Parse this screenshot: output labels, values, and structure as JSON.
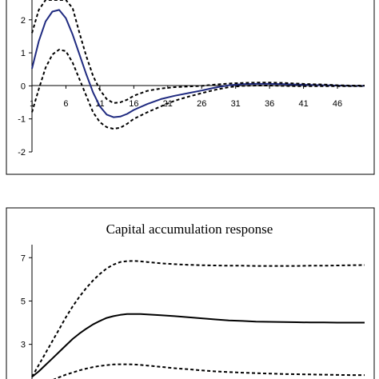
{
  "chart_data": [
    {
      "type": "line",
      "title": "",
      "xlabel": "",
      "ylabel": "",
      "x_ticks": [
        "1",
        "6",
        "11",
        "16",
        "21",
        "26",
        "31",
        "36",
        "41",
        "46"
      ],
      "y_ticks": [
        "2",
        "1",
        "0",
        "-1",
        "-2"
      ],
      "ylim": [
        -2.0,
        2.6
      ],
      "xlim": [
        1,
        50
      ],
      "grid": false,
      "legend": "none",
      "series": [
        {
          "style": "solid",
          "color": "#1f2a80",
          "x": [
            1,
            2,
            3,
            4,
            5,
            6,
            7,
            8,
            9,
            10,
            11,
            12,
            13,
            14,
            15,
            16,
            18,
            20,
            22,
            24,
            26,
            28,
            30,
            32,
            34,
            36,
            38,
            40,
            42,
            44,
            46,
            48,
            50
          ],
          "values": [
            0.52,
            1.35,
            1.95,
            2.25,
            2.3,
            2.05,
            1.55,
            0.95,
            0.35,
            -0.2,
            -0.62,
            -0.87,
            -0.95,
            -0.93,
            -0.85,
            -0.73,
            -0.55,
            -0.4,
            -0.3,
            -0.22,
            -0.14,
            -0.05,
            0.02,
            0.05,
            0.06,
            0.06,
            0.05,
            0.04,
            0.03,
            0.02,
            0.01,
            0.0,
            0.0
          ]
        },
        {
          "style": "dashed",
          "color": "#000000",
          "x": [
            1,
            2,
            3,
            4,
            5,
            6,
            7,
            8,
            9,
            10,
            11,
            12,
            13,
            14,
            15,
            16,
            18,
            20,
            22,
            24,
            26,
            28,
            30,
            32,
            34,
            36,
            38,
            40,
            42,
            44,
            46,
            48,
            50
          ],
          "values": [
            1.6,
            2.3,
            2.6,
            2.6,
            2.6,
            2.6,
            2.35,
            1.6,
            0.9,
            0.3,
            -0.12,
            -0.4,
            -0.52,
            -0.5,
            -0.42,
            -0.3,
            -0.15,
            -0.08,
            -0.04,
            -0.02,
            0.0,
            0.04,
            0.07,
            0.09,
            0.1,
            0.1,
            0.09,
            0.07,
            0.05,
            0.04,
            0.02,
            0.01,
            0.01
          ]
        },
        {
          "style": "dashed",
          "color": "#000000",
          "x": [
            1,
            2,
            3,
            4,
            5,
            6,
            7,
            8,
            9,
            10,
            11,
            12,
            13,
            14,
            15,
            16,
            18,
            20,
            22,
            24,
            26,
            28,
            30,
            32,
            34,
            36,
            38,
            40,
            42,
            44,
            46,
            48,
            50
          ],
          "values": [
            -0.8,
            -0.1,
            0.55,
            0.95,
            1.1,
            1.05,
            0.7,
            0.2,
            -0.3,
            -0.8,
            -1.1,
            -1.25,
            -1.3,
            -1.27,
            -1.15,
            -1.0,
            -0.8,
            -0.62,
            -0.45,
            -0.33,
            -0.22,
            -0.12,
            -0.04,
            0.0,
            0.01,
            0.01,
            0.0,
            -0.01,
            -0.01,
            -0.01,
            -0.01,
            -0.01,
            -0.01
          ]
        }
      ]
    },
    {
      "type": "line",
      "title": "Capital accumulation response",
      "xlabel": "",
      "ylabel": "",
      "y_ticks": [
        "7",
        "5",
        "3"
      ],
      "ylim": [
        1.4,
        7.6
      ],
      "xlim": [
        1,
        50
      ],
      "grid": false,
      "legend": "none",
      "series": [
        {
          "style": "solid",
          "color": "#000000",
          "x": [
            1,
            2,
            3,
            4,
            5,
            6,
            7,
            8,
            9,
            10,
            11,
            12,
            13,
            14,
            15,
            16,
            17,
            18,
            19,
            20,
            22,
            24,
            26,
            28,
            30,
            32,
            34,
            36,
            38,
            40,
            42,
            44,
            46,
            48,
            50
          ],
          "values": [
            1.5,
            1.75,
            2.05,
            2.35,
            2.65,
            2.95,
            3.25,
            3.5,
            3.72,
            3.92,
            4.08,
            4.22,
            4.3,
            4.36,
            4.4,
            4.4,
            4.4,
            4.38,
            4.36,
            4.34,
            4.3,
            4.25,
            4.2,
            4.15,
            4.1,
            4.08,
            4.05,
            4.04,
            4.03,
            4.02,
            4.01,
            4.01,
            4.0,
            4.0,
            4.0
          ]
        },
        {
          "style": "dashed",
          "color": "#000000",
          "x": [
            1,
            2,
            3,
            4,
            5,
            6,
            7,
            8,
            9,
            10,
            11,
            12,
            13,
            14,
            15,
            16,
            17,
            18,
            19,
            20,
            22,
            24,
            26,
            28,
            30,
            32,
            34,
            36,
            38,
            40,
            42,
            44,
            46,
            48,
            50
          ],
          "values": [
            1.5,
            2.05,
            2.6,
            3.15,
            3.7,
            4.25,
            4.75,
            5.2,
            5.6,
            5.95,
            6.25,
            6.5,
            6.68,
            6.8,
            6.84,
            6.85,
            6.83,
            6.8,
            6.77,
            6.74,
            6.7,
            6.67,
            6.65,
            6.64,
            6.63,
            6.63,
            6.62,
            6.62,
            6.62,
            6.62,
            6.63,
            6.63,
            6.64,
            6.65,
            6.66
          ]
        },
        {
          "style": "dashed",
          "color": "#000000",
          "x": [
            1,
            2,
            3,
            4,
            5,
            6,
            7,
            8,
            9,
            10,
            11,
            12,
            13,
            14,
            15,
            16,
            17,
            18,
            19,
            20,
            22,
            24,
            26,
            28,
            30,
            32,
            34,
            36,
            38,
            40,
            42,
            44,
            46,
            48,
            50
          ],
          "values": [
            1.0,
            1.1,
            1.22,
            1.35,
            1.48,
            1.6,
            1.7,
            1.8,
            1.88,
            1.95,
            2.0,
            2.04,
            2.07,
            2.08,
            2.08,
            2.07,
            2.05,
            2.02,
            1.99,
            1.96,
            1.9,
            1.85,
            1.8,
            1.75,
            1.72,
            1.69,
            1.67,
            1.65,
            1.63,
            1.62,
            1.61,
            1.6,
            1.59,
            1.58,
            1.58
          ]
        }
      ]
    }
  ]
}
